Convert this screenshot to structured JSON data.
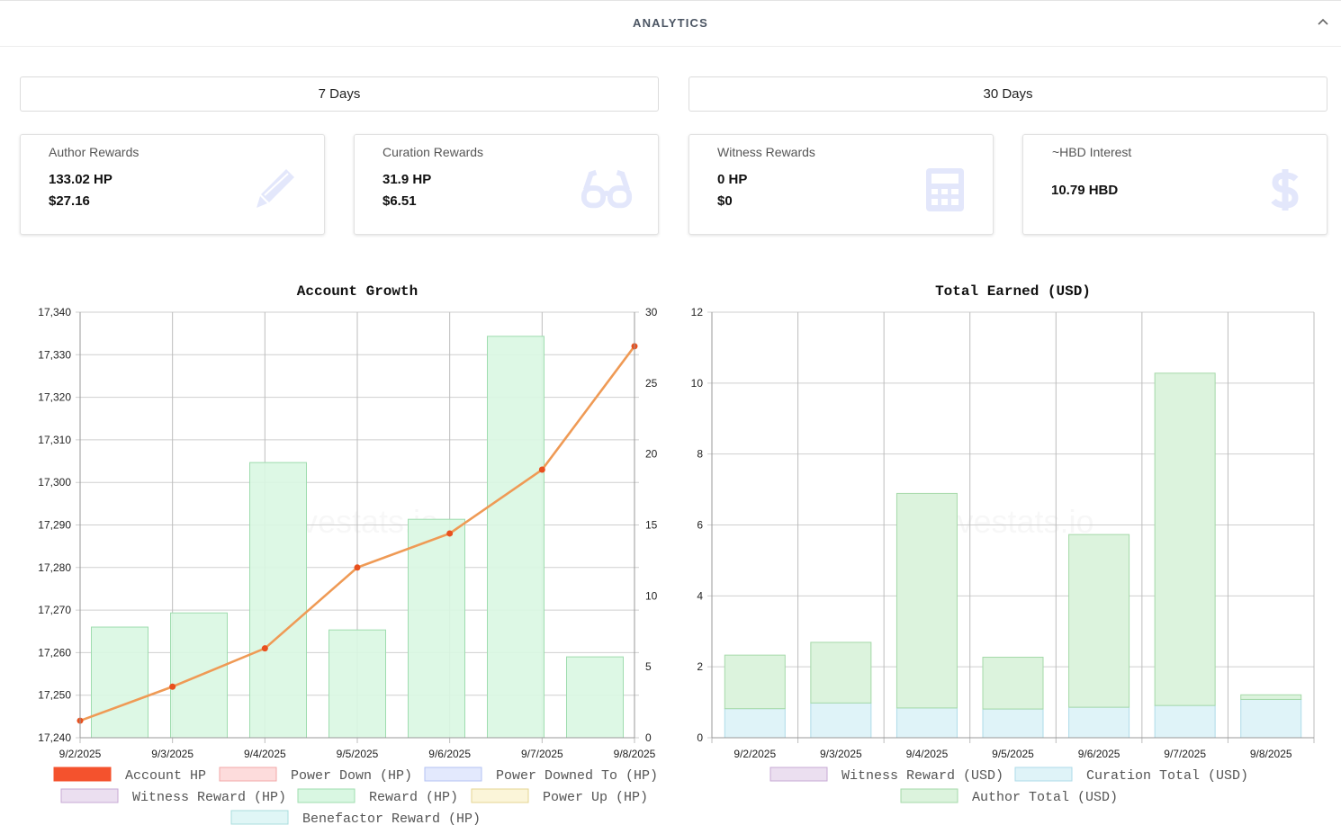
{
  "header": {
    "title": "ANALYTICS"
  },
  "ranges": [
    "7 Days",
    "30 Days"
  ],
  "cards": [
    {
      "label": "Author Rewards",
      "lines": [
        "133.02 HP",
        "$27.16"
      ],
      "icon": "pencil-icon"
    },
    {
      "label": "Curation Rewards",
      "lines": [
        "31.9 HP",
        "$6.51"
      ],
      "icon": "glasses-icon"
    },
    {
      "label": "Witness Rewards",
      "lines": [
        "0 HP",
        "$0"
      ],
      "icon": "calculator-icon"
    },
    {
      "label": "~HBD Interest",
      "lines": [
        "10.79 HBD"
      ],
      "icon": "dollar-icon"
    }
  ],
  "colors": {
    "icon": "#e3e7fb",
    "line": "#ef9a55",
    "point": "#e8501e",
    "reward_fill": "#d9f7e2",
    "reward_stroke": "#9fdcaf"
  },
  "watermark": "hivestats.io",
  "chart_data": [
    {
      "type": "bar",
      "title": "Account Growth",
      "categories": [
        "9/2/2025",
        "9/3/2025",
        "9/4/2025",
        "9/5/2025",
        "9/6/2025",
        "9/7/2025",
        "9/8/2025"
      ],
      "y_left": {
        "ylim": [
          17240,
          17340
        ],
        "ticks": [
          "17,240",
          "17,250",
          "17,260",
          "17,270",
          "17,280",
          "17,290",
          "17,300",
          "17,310",
          "17,320",
          "17,330",
          "17,340"
        ]
      },
      "y_right": {
        "ylim": [
          0,
          30
        ],
        "ticks": [
          "0",
          "5",
          "10",
          "15",
          "20",
          "25",
          "30"
        ]
      },
      "series": [
        {
          "name": "Account HP",
          "type": "line",
          "axis": "left",
          "values": [
            17244,
            17252,
            17261,
            17280,
            17288,
            17303,
            17332
          ],
          "color": "#ef9a55"
        },
        {
          "name": "Reward (HP)",
          "type": "bar",
          "axis": "right",
          "values": [
            7.8,
            8.8,
            19.4,
            7.6,
            15.4,
            28.3,
            5.7
          ],
          "color": "#d9f7e2"
        }
      ],
      "legend": [
        {
          "name": "Account HP",
          "fill": "#f4522d",
          "stroke": "#f4522d"
        },
        {
          "name": "Power Down (HP)",
          "fill": "#fddcdc",
          "stroke": "#f2a7a7"
        },
        {
          "name": "Power Downed To (HP)",
          "fill": "#e3e9fd",
          "stroke": "#b3c2f3"
        },
        {
          "name": "Witness Reward (HP)",
          "fill": "#ebdff0",
          "stroke": "#c7a9d4"
        },
        {
          "name": "Reward (HP)",
          "fill": "#d9f7e2",
          "stroke": "#9fdcaf"
        },
        {
          "name": "Power Up (HP)",
          "fill": "#fbf5d9",
          "stroke": "#e6d592"
        },
        {
          "name": "Benefactor Reward (HP)",
          "fill": "#e0f6f6",
          "stroke": "#a9dede"
        }
      ],
      "legend_placement": "bottom",
      "grid": true
    },
    {
      "type": "bar",
      "stacked": true,
      "title": "Total Earned (USD)",
      "categories": [
        "9/2/2025",
        "9/3/2025",
        "9/4/2025",
        "9/5/2025",
        "9/6/2025",
        "9/7/2025",
        "9/8/2025"
      ],
      "ylim": [
        0,
        12
      ],
      "yticks": [
        "0",
        "2",
        "4",
        "6",
        "8",
        "10",
        "12"
      ],
      "series": [
        {
          "name": "Witness Reward (USD)",
          "values": [
            0,
            0,
            0,
            0,
            0,
            0,
            0
          ],
          "fill": "#ebdff0",
          "stroke": "#c7a9d4"
        },
        {
          "name": "Curation Total (USD)",
          "values": [
            0.82,
            0.98,
            0.84,
            0.81,
            0.86,
            0.91,
            1.08
          ],
          "fill": "#dff3f8",
          "stroke": "#aedbe8"
        },
        {
          "name": "Author Total (USD)",
          "values": [
            1.51,
            1.71,
            6.05,
            1.46,
            4.87,
            9.37,
            0.13
          ],
          "fill": "#dcf3dd",
          "stroke": "#a5d9a9"
        }
      ],
      "legend": [
        {
          "name": "Witness Reward (USD)",
          "fill": "#ebdff0",
          "stroke": "#c7a9d4"
        },
        {
          "name": "Curation Total (USD)",
          "fill": "#dff3f8",
          "stroke": "#aedbe8"
        },
        {
          "name": "Author Total (USD)",
          "fill": "#dcf3dd",
          "stroke": "#a5d9a9"
        }
      ],
      "legend_placement": "bottom",
      "grid": true
    }
  ]
}
